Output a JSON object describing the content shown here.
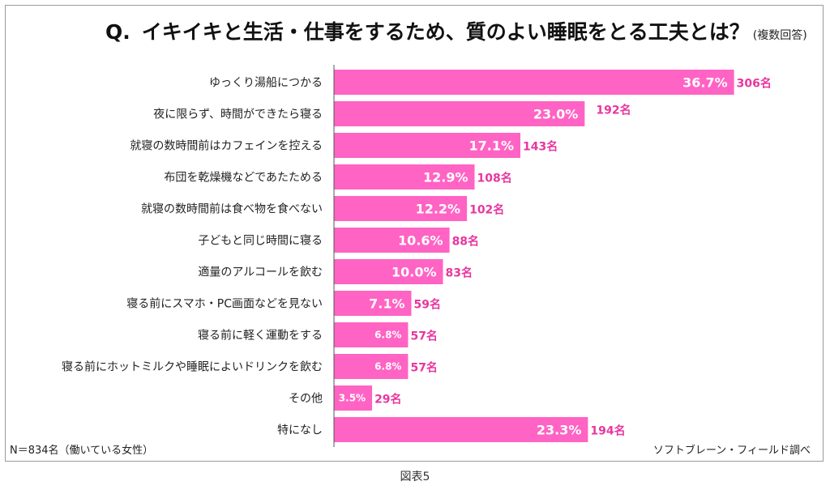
{
  "title": {
    "q_label": "Q.",
    "text": "イキイキと生活・仕事をするため、質のよい睡眠をとる工夫とは？",
    "note": "(複数回答)"
  },
  "colors": {
    "bar": "#ff63c4",
    "value_label": "#ffffff",
    "count_label": "#e8369f",
    "axis": "#555555"
  },
  "chart_data": {
    "type": "bar",
    "orientation": "horizontal",
    "xlim": [
      0,
      40
    ],
    "grid": false,
    "categories": [
      "ゆっくり湯船につかる",
      "夜に限らず、時間ができたら寝る",
      "就寝の数時間前はカフェインを控える",
      "布団を乾燥機などであたためる",
      "就寝の数時間前は食べ物を食べない",
      "子どもと同じ時間に寝る",
      "適量のアルコールを飲む",
      "寝る前にスマホ・PC画面などを見ない",
      "寝る前に軽く運動をする",
      "寝る前にホットミルクや睡眠によいドリンクを飲む",
      "その他",
      "特になし"
    ],
    "values": [
      36.7,
      23.0,
      17.1,
      12.9,
      12.2,
      10.6,
      10.0,
      7.1,
      6.8,
      6.8,
      3.5,
      23.3
    ],
    "value_labels": [
      "36.7%",
      "23.0%",
      "17.1%",
      "12.9%",
      "12.2%",
      "10.6%",
      "10.0%",
      "7.1%",
      "6.8%",
      "6.8%",
      "3.5%",
      "23.3%"
    ],
    "counts": [
      "306名",
      "192名",
      "143名",
      "108名",
      "102名",
      "88名",
      "83名",
      "59名",
      "57名",
      "57名",
      "29名",
      "194名"
    ]
  },
  "footer": {
    "sample": "N＝834名（働いている女性）",
    "source": "ソフトブレーン・フィールド調べ"
  },
  "caption": "図表5"
}
